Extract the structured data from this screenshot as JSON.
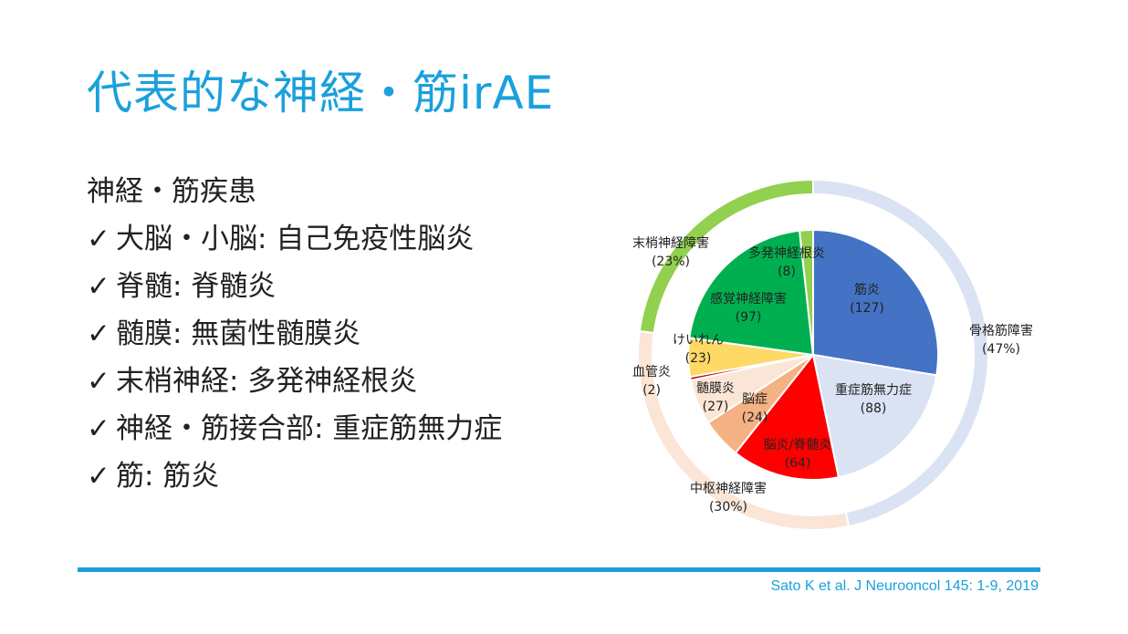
{
  "slide": {
    "title": "代表的な神経・筋irAE",
    "heading": "神経・筋疾患",
    "check_icon": "check-mark-icon",
    "items": [
      "大脳・小脳: 自己免疫性脳炎",
      "脊髄: 脊髄炎",
      "髄膜: 無菌性髄膜炎",
      "末梢神経: 多発神経根炎",
      "神経・筋接合部: 重症筋無力症",
      "筋: 筋炎"
    ],
    "citation": "Sato K et al. J Neurooncol 145: 1-9, 2019",
    "accent_color": "#1aa0dc"
  },
  "chart_data": {
    "type": "pie",
    "subtype": "sunburst (inner pie + outer ring)",
    "inner": [
      {
        "label": "筋炎",
        "value": 127,
        "value_label": "(127)",
        "color": "#4472c4"
      },
      {
        "label": "重症筋無力症",
        "value": 88,
        "value_label": "(88)",
        "color": "#dae3f3"
      },
      {
        "label": "脳炎/脊髄炎",
        "value": 64,
        "value_label": "(64)",
        "color": "#ff0000"
      },
      {
        "label": "脳症",
        "value": 24,
        "value_label": "(24)",
        "color": "#f4b183"
      },
      {
        "label": "髄膜炎",
        "value": 27,
        "value_label": "(27)",
        "color": "#fbe5d6"
      },
      {
        "label": "血管炎",
        "value": 2,
        "value_label": "(2)",
        "color": "#c00000"
      },
      {
        "label": "けいれん",
        "value": 23,
        "value_label": "(23)",
        "color": "#ffd966"
      },
      {
        "label": "感覚神経障害",
        "value": 97,
        "value_label": "(97)",
        "color": "#00b050"
      },
      {
        "label": "多発神経根炎",
        "value": 8,
        "value_label": "(8)",
        "color": "#92d050"
      }
    ],
    "outer": [
      {
        "label": "骨格筋障害",
        "percent_label": "(47%)",
        "value": 215,
        "color": "#dae3f3"
      },
      {
        "label": "中枢神経障害",
        "percent_label": "(30%)",
        "value": 140,
        "color": "#fbe5d6"
      },
      {
        "label": "末梢神経障害",
        "percent_label": "(23%)",
        "value": 105,
        "color": "#92d050"
      }
    ]
  }
}
